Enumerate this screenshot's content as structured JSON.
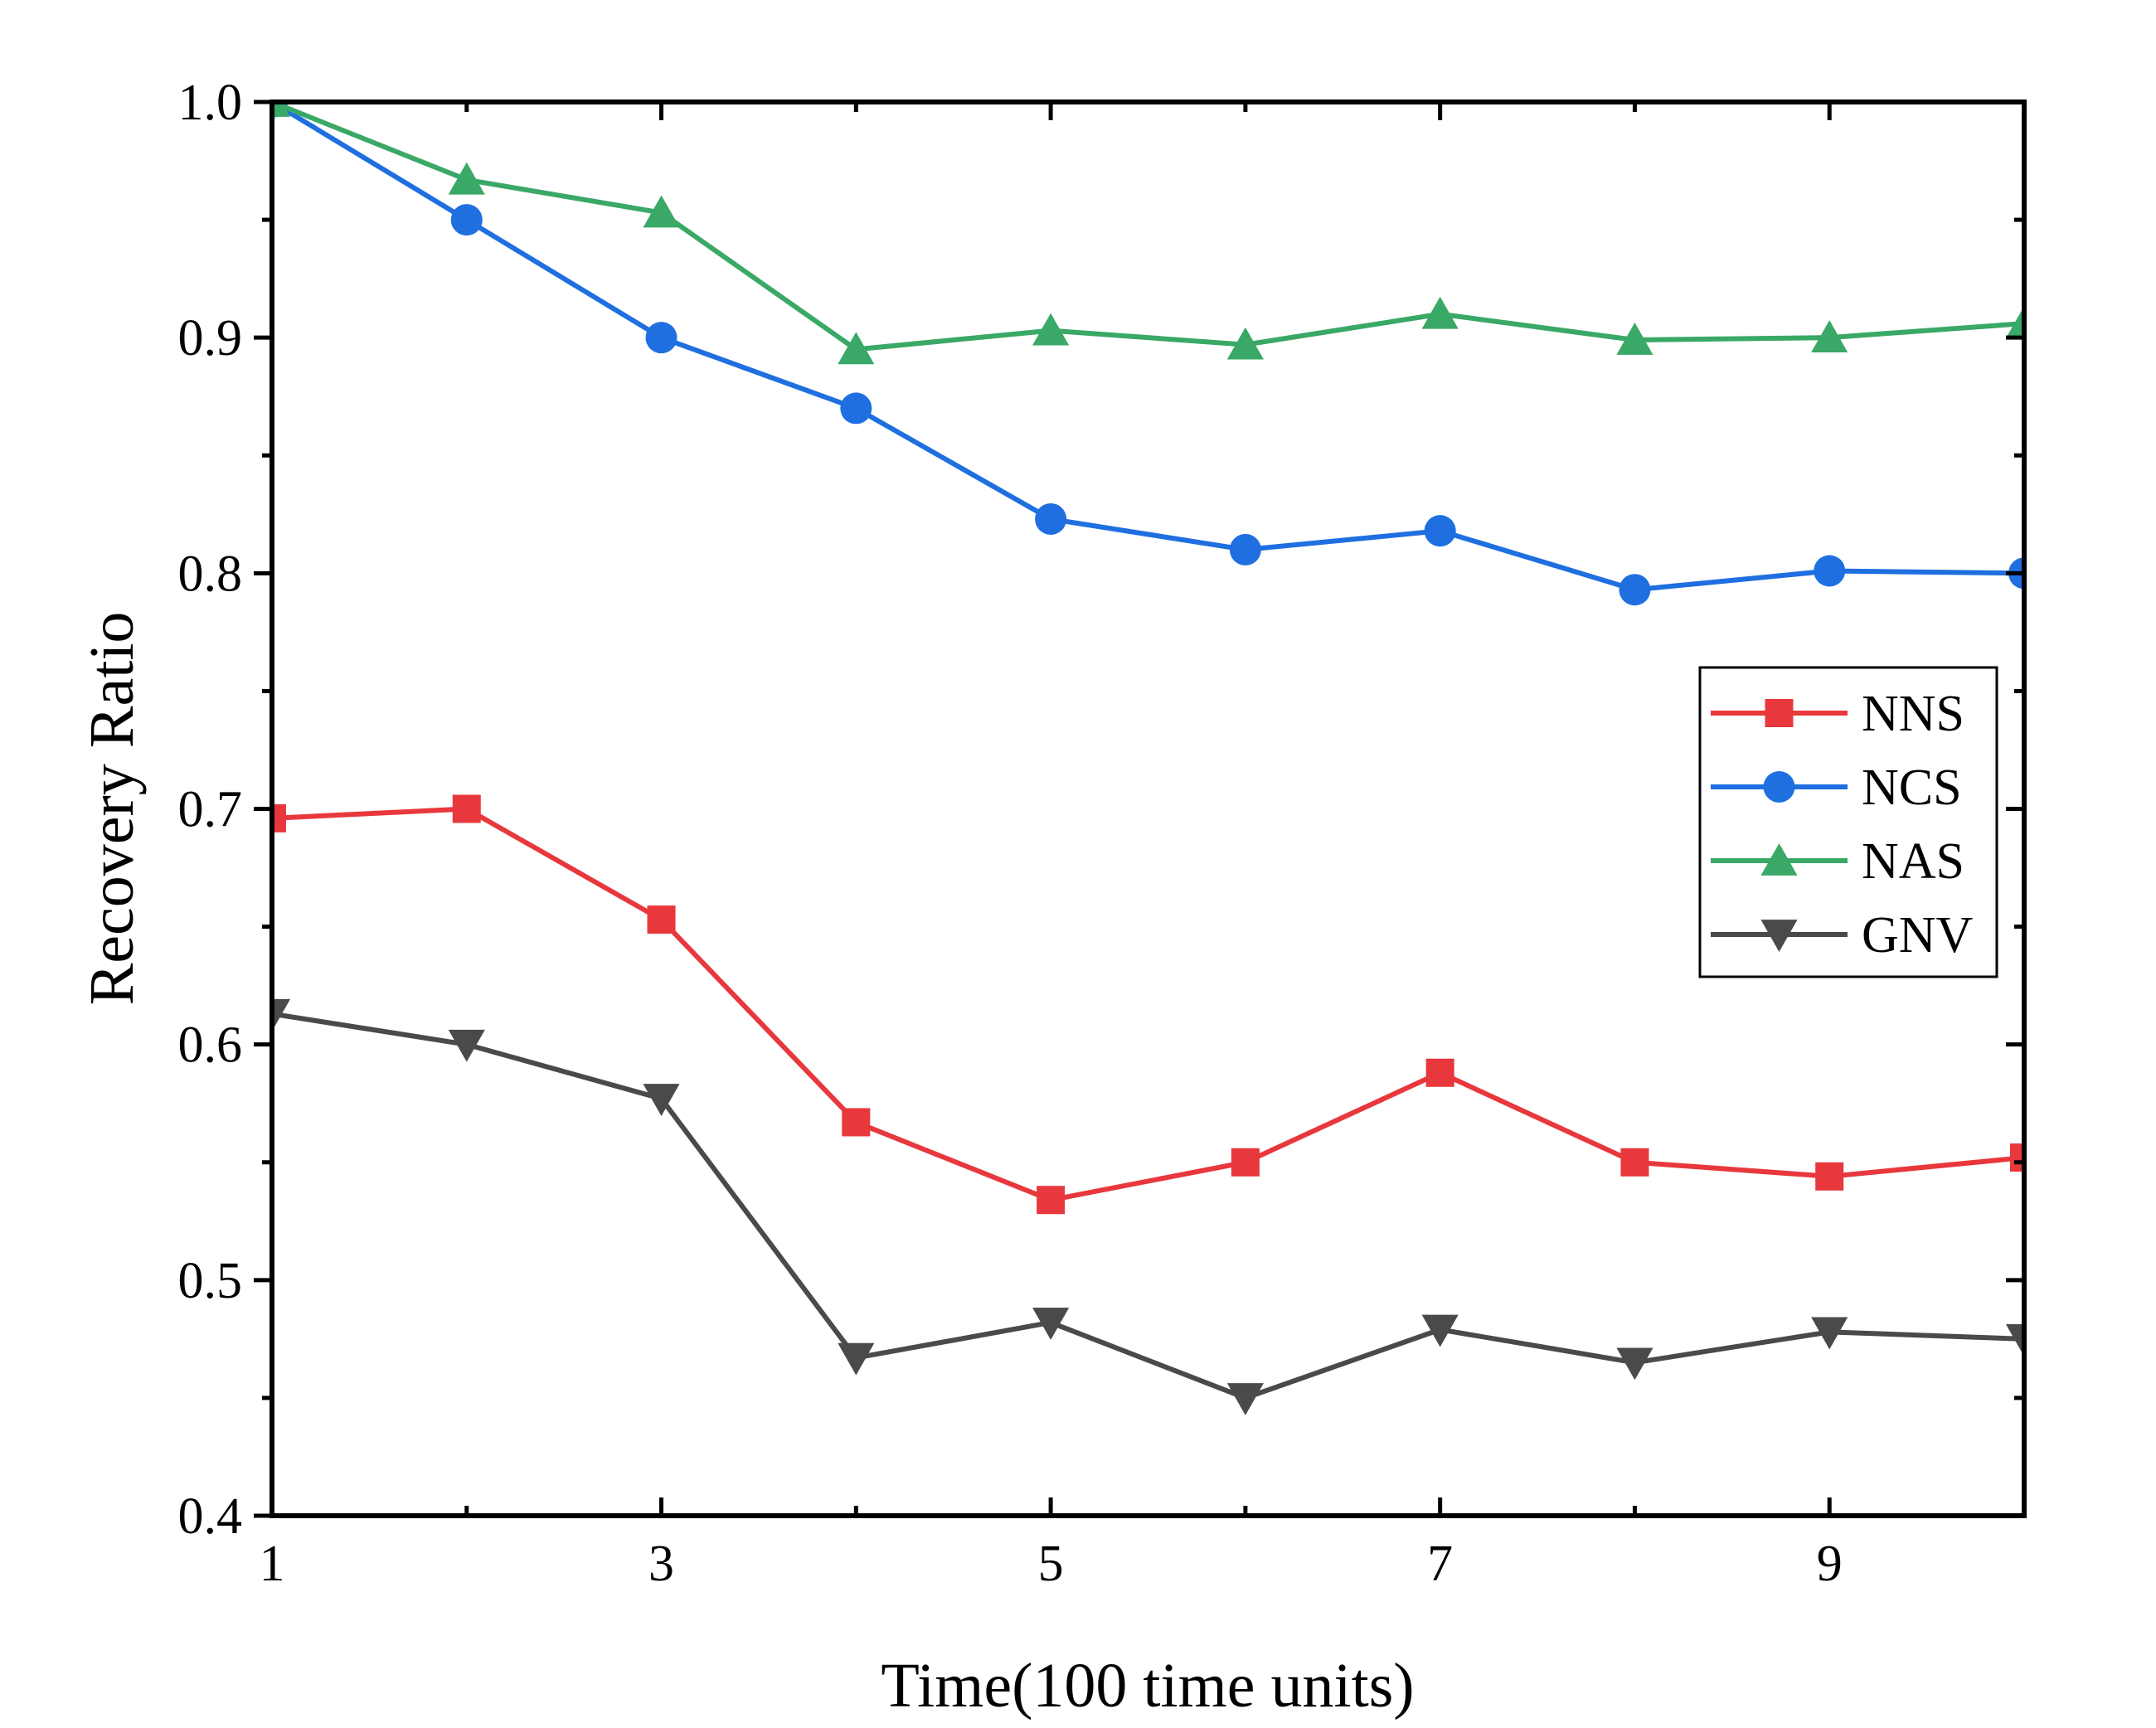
{
  "chart_data": {
    "type": "line",
    "title": "",
    "xlabel": "Time(100 time units)",
    "ylabel": "Recovery Ratio",
    "xlim": [
      1,
      10
    ],
    "ylim": [
      0.4,
      1.0
    ],
    "x_ticks": [
      1,
      3,
      5,
      7,
      9
    ],
    "x_tick_labels": [
      "1",
      "3",
      "5",
      "7",
      "9"
    ],
    "x_minor_ticks": [
      2,
      4,
      6,
      8,
      10
    ],
    "y_ticks": [
      0.4,
      0.5,
      0.6,
      0.7,
      0.8,
      0.9,
      1.0
    ],
    "y_tick_labels": [
      "0.4",
      "0.5",
      "0.6",
      "0.7",
      "0.8",
      "0.9",
      "1.0"
    ],
    "y_minor_ticks": [
      0.45,
      0.55,
      0.65,
      0.75,
      0.85,
      0.95
    ],
    "grid": false,
    "legend_position": "right",
    "x": [
      1,
      2,
      3,
      4,
      5,
      6,
      7,
      8,
      9,
      10
    ],
    "series": [
      {
        "name": "NNS",
        "color": "#e8383d",
        "marker": "square",
        "values": [
          0.696,
          0.7,
          0.653,
          0.567,
          0.534,
          0.55,
          0.588,
          0.55,
          0.544,
          0.552
        ]
      },
      {
        "name": "NCS",
        "color": "#1f6fe0",
        "marker": "circle",
        "values": [
          1.0,
          0.95,
          0.9,
          0.87,
          0.823,
          0.81,
          0.818,
          0.793,
          0.801,
          0.8
        ]
      },
      {
        "name": "NAS",
        "color": "#3aa866",
        "marker": "triangle-up",
        "values": [
          1.0,
          0.967,
          0.953,
          0.895,
          0.903,
          0.897,
          0.91,
          0.899,
          0.9,
          0.906
        ]
      },
      {
        "name": "GNV",
        "color": "#4a4a4a",
        "marker": "triangle-down",
        "values": [
          0.613,
          0.6,
          0.577,
          0.467,
          0.482,
          0.45,
          0.479,
          0.465,
          0.478,
          0.475
        ]
      }
    ]
  }
}
